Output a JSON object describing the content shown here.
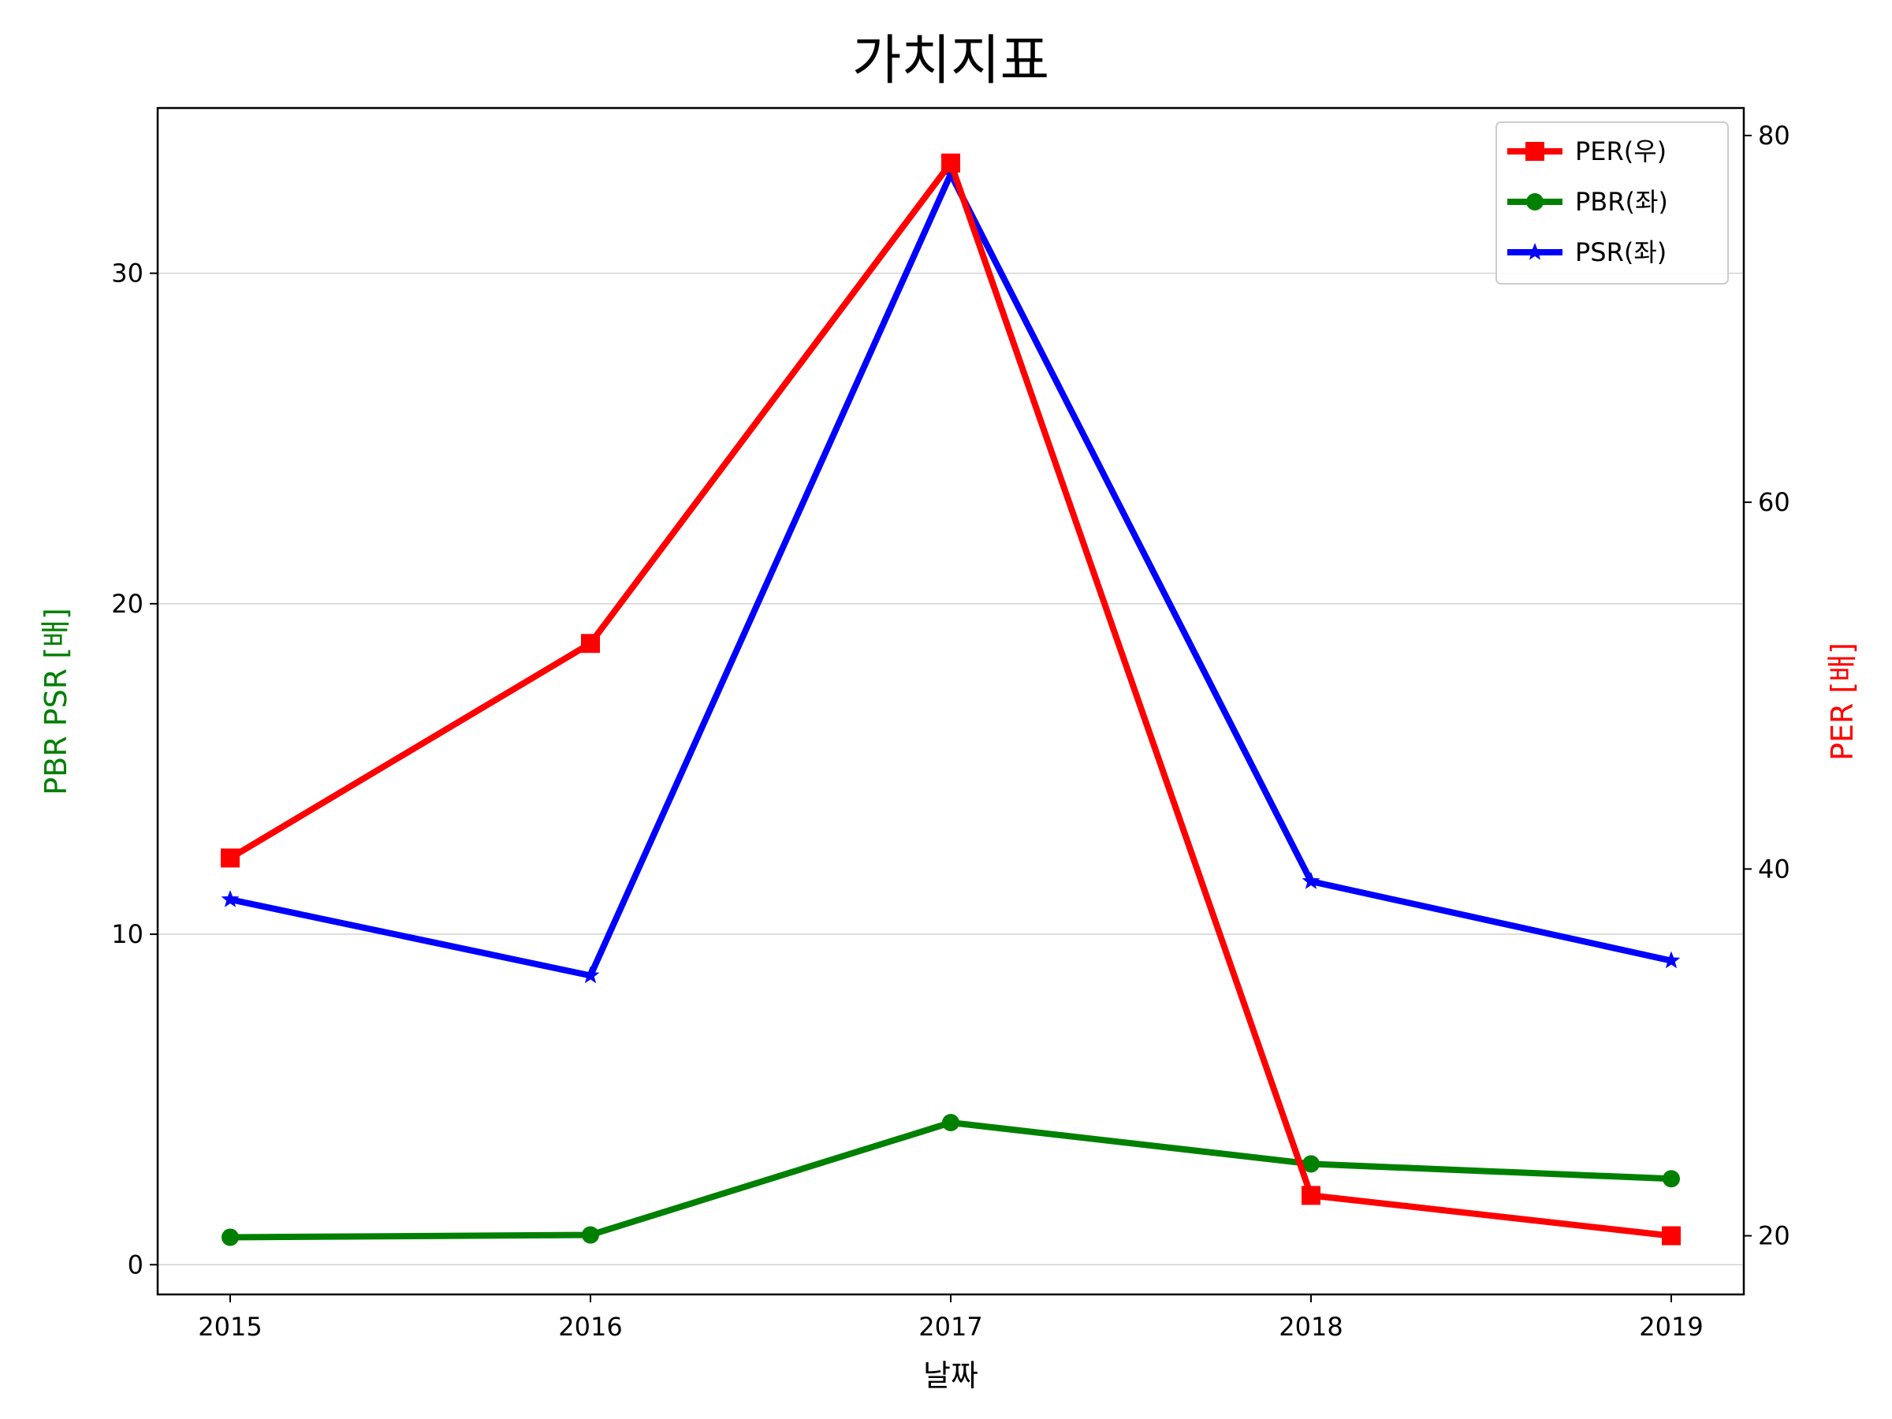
{
  "chart_data": {
    "type": "line",
    "title": "가치지표",
    "xlabel": "날짜",
    "ylabel_left": "PBR PSR [배]",
    "ylabel_right": "PER [배]",
    "categories": [
      "2015",
      "2016",
      "2017",
      "2018",
      "2019"
    ],
    "left_axis": {
      "ylim": [
        -0.9,
        35
      ],
      "ticks": [
        0,
        10,
        20,
        30
      ],
      "tick_labels": [
        "0",
        "10",
        "20",
        "30"
      ],
      "label_color": "#008000"
    },
    "right_axis": {
      "ylim": [
        16.8,
        81.5
      ],
      "ticks": [
        20,
        40,
        60,
        80
      ],
      "tick_labels": [
        "20",
        "40",
        "60",
        "80"
      ],
      "label_color": "#ff0000"
    },
    "grid": "horizontal (left axis)",
    "legend_position": "top-right",
    "series": [
      {
        "name": "PER(우)",
        "axis": "right",
        "color": "#ff0000",
        "marker": "square",
        "values": [
          40.6,
          52.3,
          78.5,
          22.2,
          20.0
        ]
      },
      {
        "name": "PBR(좌)",
        "axis": "left",
        "color": "#008000",
        "marker": "circle",
        "values": [
          0.83,
          0.9,
          4.3,
          3.05,
          2.6
        ]
      },
      {
        "name": "PSR(좌)",
        "axis": "left",
        "color": "#0000ff",
        "marker": "star",
        "values": [
          11.05,
          8.75,
          33.0,
          11.6,
          9.2
        ]
      }
    ]
  }
}
